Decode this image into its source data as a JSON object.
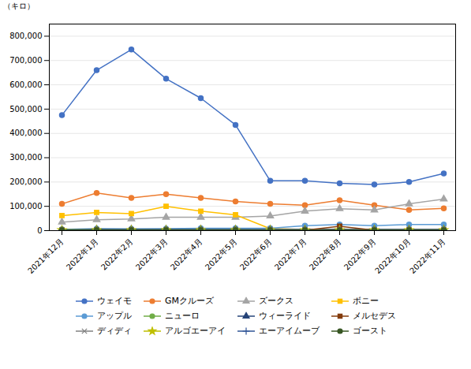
{
  "chart_data": {
    "type": "line",
    "ylabel": "（キロ）",
    "categories": [
      "2021年12月",
      "2022年1月",
      "2022年2月",
      "2022年3月",
      "2022年4月",
      "2022年5月",
      "2022年6月",
      "2022年7月",
      "2022年8月",
      "2022年9月",
      "2022年10月",
      "2022年11月"
    ],
    "series": [
      {
        "name": "ウェイモ",
        "color": "#4472C4",
        "marker": "circle",
        "values": [
          475000,
          660000,
          745000,
          625000,
          545000,
          435000,
          205000,
          205000,
          195000,
          190000,
          200000,
          235000
        ]
      },
      {
        "name": "GMクルーズ",
        "color": "#ED7D31",
        "marker": "circle",
        "values": [
          110000,
          155000,
          135000,
          150000,
          135000,
          120000,
          110000,
          105000,
          125000,
          105000,
          85000,
          92000
        ]
      },
      {
        "name": "ズークス",
        "color": "#A5A5A5",
        "marker": "triangle",
        "values": [
          35000,
          45000,
          48000,
          55000,
          55000,
          55000,
          60000,
          80000,
          90000,
          85000,
          110000,
          130000
        ]
      },
      {
        "name": "ボニー",
        "color": "#FFC000",
        "marker": "square",
        "values": [
          62000,
          75000,
          70000,
          100000,
          80000,
          65000,
          8000,
          5000,
          5000,
          5000,
          5000,
          5000
        ]
      },
      {
        "name": "アップル",
        "color": "#5B9BD5",
        "marker": "circle",
        "values": [
          5000,
          8000,
          7000,
          8000,
          10000,
          10000,
          10000,
          20000,
          25000,
          20000,
          25000,
          25000
        ]
      },
      {
        "name": "ニューロ",
        "color": "#70AD47",
        "marker": "circle",
        "values": [
          5000,
          5000,
          5000,
          5000,
          5000,
          5000,
          3000,
          3000,
          3000,
          3000,
          3000,
          3000
        ]
      },
      {
        "name": "ウィーライド",
        "color": "#264478",
        "marker": "triangle",
        "values": [
          3000,
          5000,
          5000,
          5000,
          5000,
          5000,
          5000,
          5000,
          5000,
          5000,
          5000,
          5000
        ]
      },
      {
        "name": "メルセデス",
        "color": "#843C0C",
        "marker": "square",
        "values": [
          2000,
          2000,
          2000,
          2000,
          2000,
          2000,
          2000,
          2000,
          18000,
          2000,
          2000,
          2000
        ]
      },
      {
        "name": "ディディ",
        "color": "#808080",
        "marker": "times",
        "values": [
          2000,
          2000,
          2000,
          2000,
          2000,
          2000,
          2000,
          2000,
          2000,
          2000,
          2000,
          2000
        ]
      },
      {
        "name": "アルゴエーアイ",
        "color": "#BFBF00",
        "marker": "star",
        "values": [
          2000,
          2000,
          2000,
          2000,
          2000,
          2000,
          2000,
          2000,
          2000,
          2000,
          2000,
          2000
        ]
      },
      {
        "name": "エーアイムーブ",
        "color": "#2F5496",
        "marker": "plus",
        "values": [
          2000,
          2000,
          2000,
          2000,
          2000,
          2000,
          2000,
          2000,
          2000,
          2000,
          2000,
          2000
        ]
      },
      {
        "name": "ゴースト",
        "color": "#375623",
        "marker": "circle",
        "values": [
          2000,
          2000,
          2000,
          2000,
          2000,
          2000,
          2000,
          2000,
          2000,
          2000,
          2000,
          2000
        ]
      }
    ],
    "ylim": [
      0,
      850000
    ],
    "yticks": [
      0,
      {
        "value": 100000,
        "label": "100,000"
      },
      {
        "value": 200000,
        "label": "200,000"
      },
      {
        "value": 300000,
        "label": "300,000"
      },
      {
        "value": 400000,
        "label": "400,000"
      },
      {
        "value": 500000,
        "label": "500,000"
      },
      {
        "value": 600000,
        "label": "600,000"
      },
      {
        "value": 700000,
        "label": "700,000"
      },
      {
        "value": 800000,
        "label": "800,000"
      }
    ],
    "grid": true,
    "legend": "bottom"
  }
}
